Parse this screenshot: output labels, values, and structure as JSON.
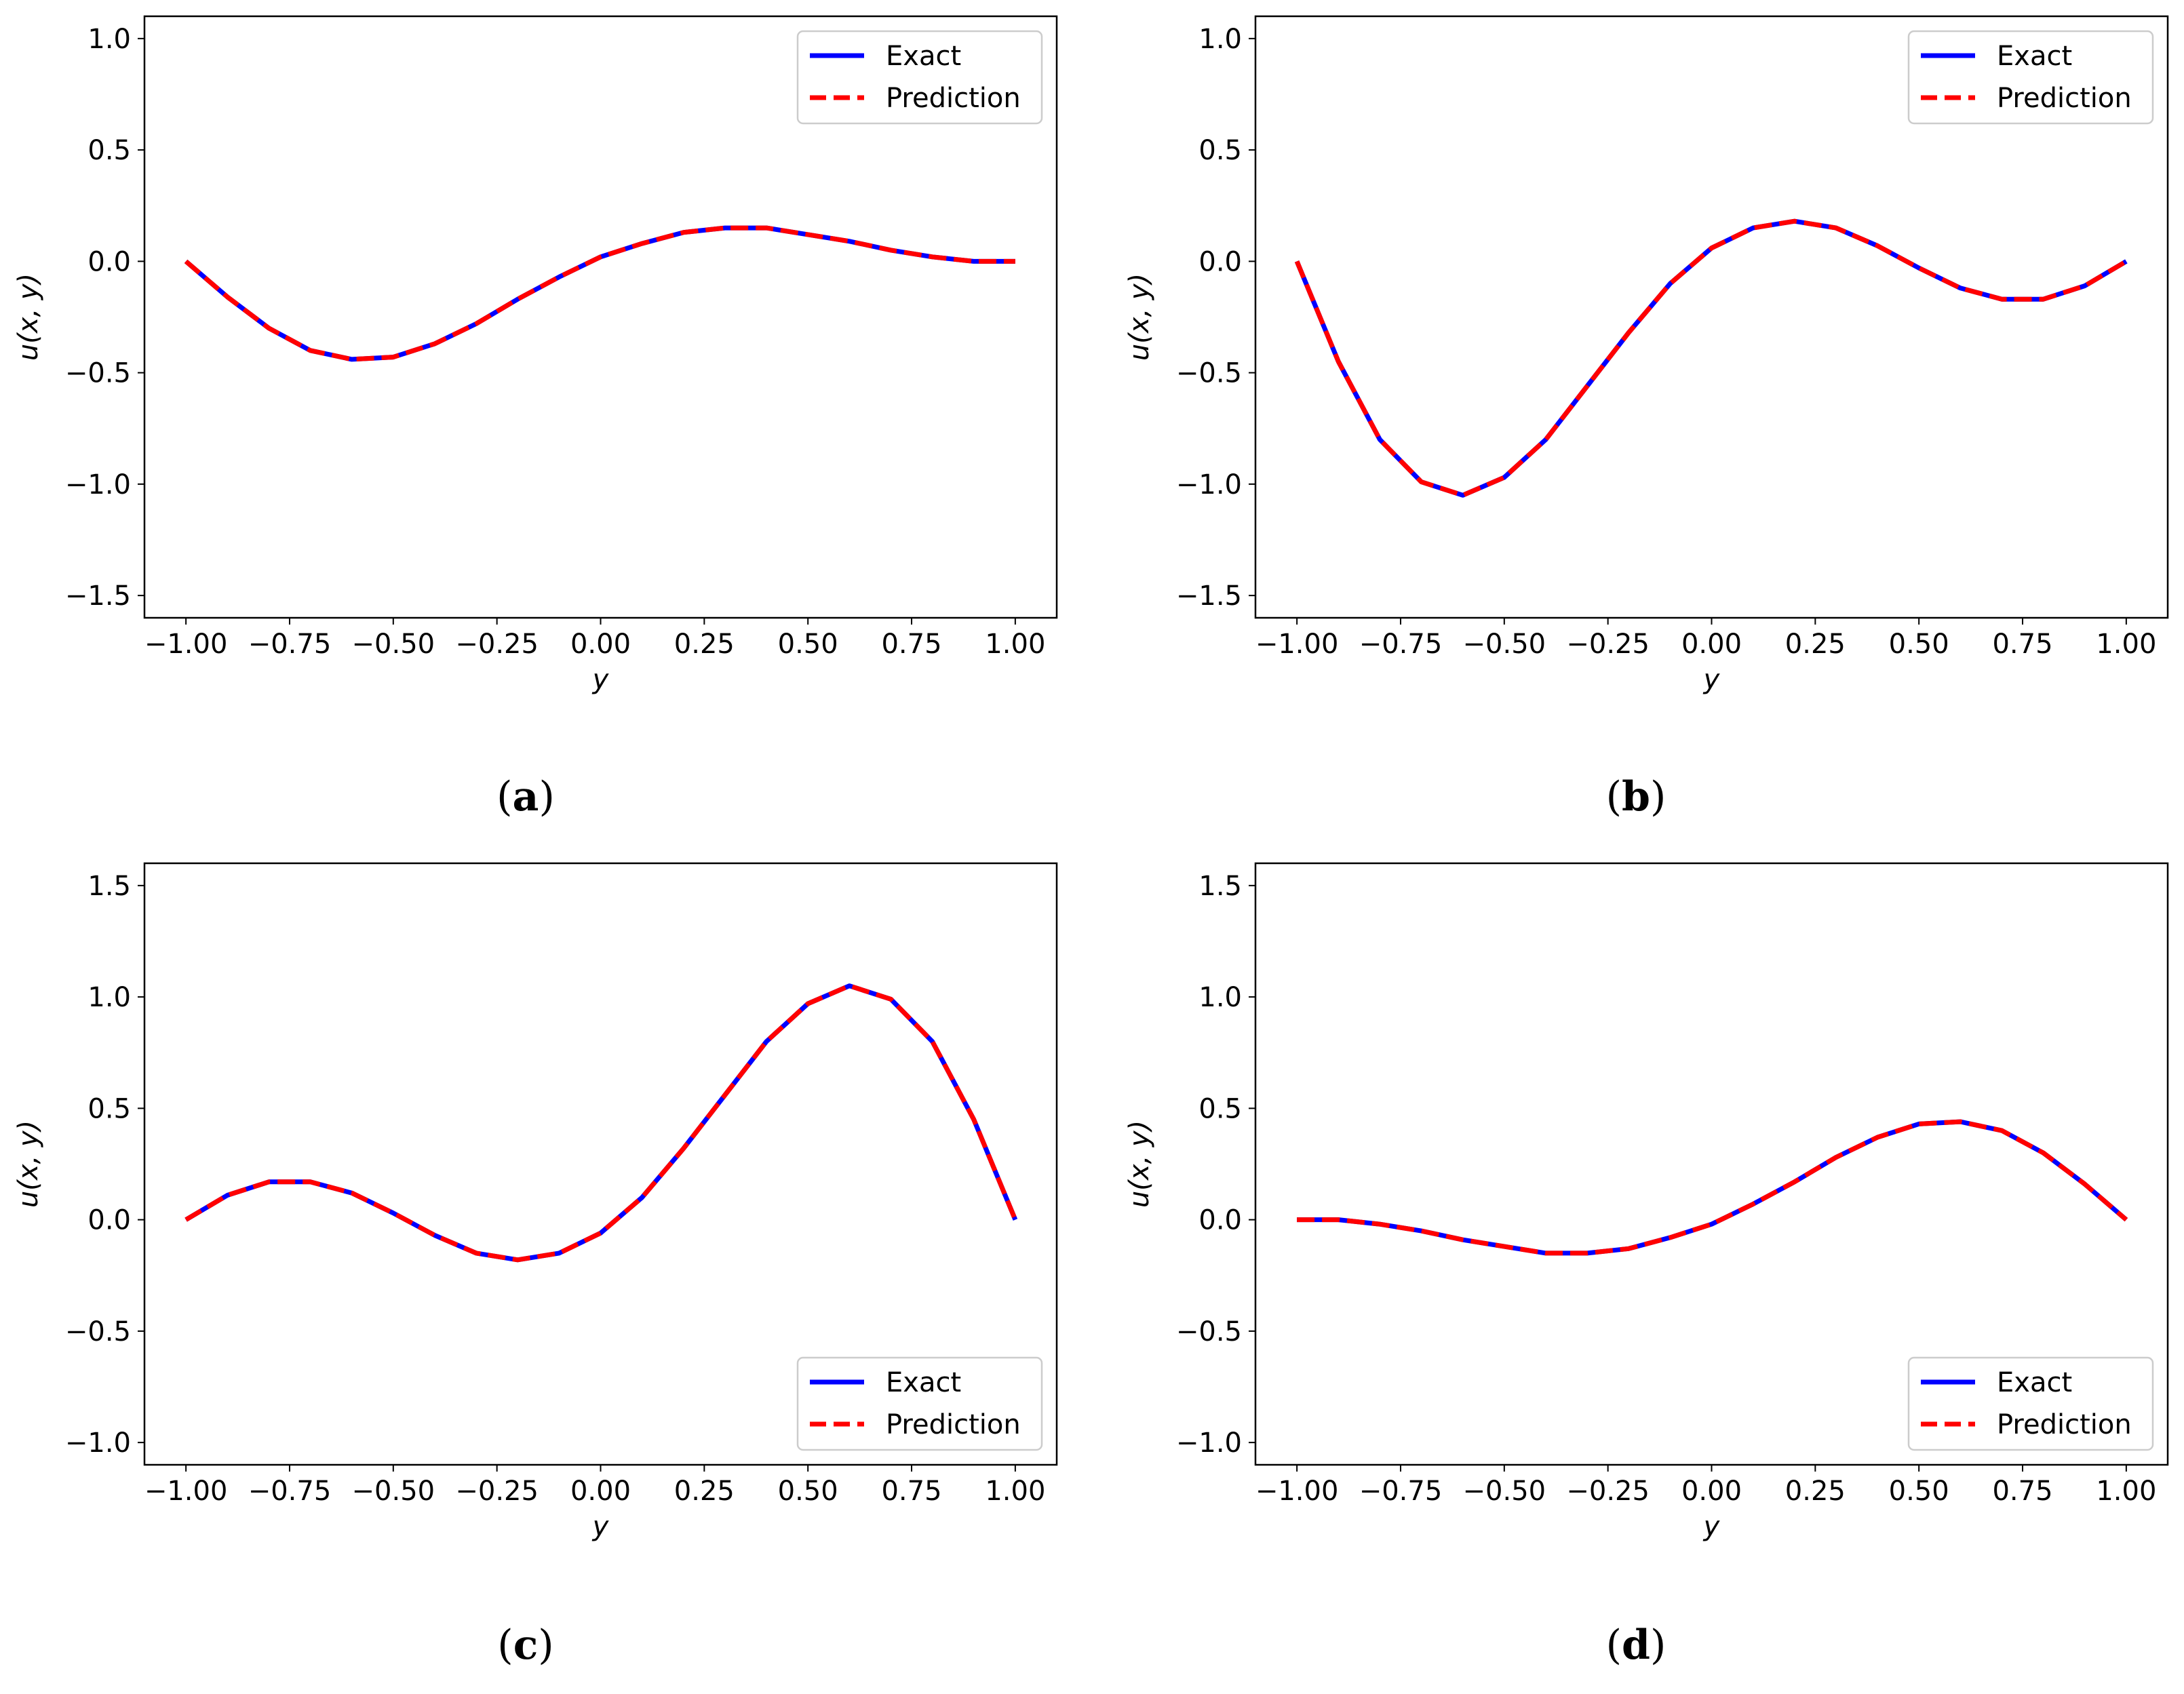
{
  "chart_data": [
    {
      "type": "line",
      "panel": "a",
      "caption_letter": "a",
      "xlabel": "y",
      "ylabel": "u(x, y)",
      "xlim": [
        -1.1,
        1.1
      ],
      "ylim": [
        -1.6,
        1.1
      ],
      "xticks": [
        -1.0,
        -0.75,
        -0.5,
        -0.25,
        0.0,
        0.25,
        0.5,
        0.75,
        1.0
      ],
      "xtick_labels": [
        "−1.00",
        "−0.75",
        "−0.50",
        "−0.25",
        "0.00",
        "0.25",
        "0.50",
        "0.75",
        "1.00"
      ],
      "yticks": [
        -1.5,
        -1.0,
        -0.5,
        0.0,
        0.5,
        1.0
      ],
      "ytick_labels": [
        "−1.5",
        "−1.0",
        "−0.5",
        "0.0",
        "0.5",
        "1.0"
      ],
      "legend_position": "top-right",
      "x": [
        -1.0,
        -0.9,
        -0.8,
        -0.7,
        -0.6,
        -0.5,
        -0.4,
        -0.3,
        -0.2,
        -0.1,
        0.0,
        0.1,
        0.2,
        0.3,
        0.4,
        0.5,
        0.6,
        0.7,
        0.8,
        0.9,
        1.0
      ],
      "series": [
        {
          "name": "Exact",
          "color": "#0000ff",
          "style": "solid",
          "values": [
            0.0,
            -0.16,
            -0.3,
            -0.4,
            -0.44,
            -0.43,
            -0.37,
            -0.28,
            -0.17,
            -0.07,
            0.02,
            0.08,
            0.13,
            0.15,
            0.15,
            0.12,
            0.09,
            0.05,
            0.02,
            0.0,
            0.0
          ]
        },
        {
          "name": "Prediction",
          "color": "#ff0000",
          "style": "dashed",
          "values": [
            0.0,
            -0.16,
            -0.3,
            -0.4,
            -0.44,
            -0.43,
            -0.37,
            -0.28,
            -0.17,
            -0.07,
            0.02,
            0.08,
            0.13,
            0.15,
            0.15,
            0.12,
            0.09,
            0.05,
            0.02,
            0.0,
            0.0
          ]
        }
      ]
    },
    {
      "type": "line",
      "panel": "b",
      "caption_letter": "b",
      "xlabel": "y",
      "ylabel": "u(x, y)",
      "xlim": [
        -1.1,
        1.1
      ],
      "ylim": [
        -1.6,
        1.1
      ],
      "xticks": [
        -1.0,
        -0.75,
        -0.5,
        -0.25,
        0.0,
        0.25,
        0.5,
        0.75,
        1.0
      ],
      "xtick_labels": [
        "−1.00",
        "−0.75",
        "−0.50",
        "−0.25",
        "0.00",
        "0.25",
        "0.50",
        "0.75",
        "1.00"
      ],
      "yticks": [
        -1.5,
        -1.0,
        -0.5,
        0.0,
        0.5,
        1.0
      ],
      "ytick_labels": [
        "−1.5",
        "−1.0",
        "−0.5",
        "0.0",
        "0.5",
        "1.0"
      ],
      "legend_position": "top-right",
      "x": [
        -1.0,
        -0.9,
        -0.8,
        -0.7,
        -0.6,
        -0.5,
        -0.4,
        -0.3,
        -0.2,
        -0.1,
        0.0,
        0.1,
        0.2,
        0.3,
        0.4,
        0.5,
        0.6,
        0.7,
        0.8,
        0.9,
        1.0
      ],
      "series": [
        {
          "name": "Exact",
          "color": "#0000ff",
          "style": "solid",
          "values": [
            0.0,
            -0.45,
            -0.8,
            -0.99,
            -1.05,
            -0.97,
            -0.8,
            -0.56,
            -0.32,
            -0.1,
            0.06,
            0.15,
            0.18,
            0.15,
            0.07,
            -0.03,
            -0.12,
            -0.17,
            -0.17,
            -0.11,
            0.0
          ]
        },
        {
          "name": "Prediction",
          "color": "#ff0000",
          "style": "dashed",
          "values": [
            0.0,
            -0.45,
            -0.8,
            -0.99,
            -1.05,
            -0.97,
            -0.8,
            -0.56,
            -0.32,
            -0.1,
            0.06,
            0.15,
            0.18,
            0.15,
            0.07,
            -0.03,
            -0.12,
            -0.17,
            -0.17,
            -0.11,
            0.0
          ]
        }
      ]
    },
    {
      "type": "line",
      "panel": "c",
      "caption_letter": "c",
      "xlabel": "y",
      "ylabel": "u(x, y)",
      "xlim": [
        -1.1,
        1.1
      ],
      "ylim": [
        -1.1,
        1.6
      ],
      "xticks": [
        -1.0,
        -0.75,
        -0.5,
        -0.25,
        0.0,
        0.25,
        0.5,
        0.75,
        1.0
      ],
      "xtick_labels": [
        "−1.00",
        "−0.75",
        "−0.50",
        "−0.25",
        "0.00",
        "0.25",
        "0.50",
        "0.75",
        "1.00"
      ],
      "yticks": [
        -1.0,
        -0.5,
        0.0,
        0.5,
        1.0,
        1.5
      ],
      "ytick_labels": [
        "−1.0",
        "−0.5",
        "0.0",
        "0.5",
        "1.0",
        "1.5"
      ],
      "legend_position": "bottom-right",
      "x": [
        -1.0,
        -0.9,
        -0.8,
        -0.7,
        -0.6,
        -0.5,
        -0.4,
        -0.3,
        -0.2,
        -0.1,
        0.0,
        0.1,
        0.2,
        0.3,
        0.4,
        0.5,
        0.6,
        0.7,
        0.8,
        0.9,
        1.0
      ],
      "series": [
        {
          "name": "Exact",
          "color": "#0000ff",
          "style": "solid",
          "values": [
            0.0,
            0.11,
            0.17,
            0.17,
            0.12,
            0.03,
            -0.07,
            -0.15,
            -0.18,
            -0.15,
            -0.06,
            0.1,
            0.32,
            0.56,
            0.8,
            0.97,
            1.05,
            0.99,
            0.8,
            0.45,
            0.0
          ]
        },
        {
          "name": "Prediction",
          "color": "#ff0000",
          "style": "dashed",
          "values": [
            0.0,
            0.11,
            0.17,
            0.17,
            0.12,
            0.03,
            -0.07,
            -0.15,
            -0.18,
            -0.15,
            -0.06,
            0.1,
            0.32,
            0.56,
            0.8,
            0.97,
            1.05,
            0.99,
            0.8,
            0.45,
            0.0
          ]
        }
      ]
    },
    {
      "type": "line",
      "panel": "d",
      "caption_letter": "d",
      "xlabel": "y",
      "ylabel": "u(x, y)",
      "xlim": [
        -1.1,
        1.1
      ],
      "ylim": [
        -1.1,
        1.6
      ],
      "xticks": [
        -1.0,
        -0.75,
        -0.5,
        -0.25,
        0.0,
        0.25,
        0.5,
        0.75,
        1.0
      ],
      "xtick_labels": [
        "−1.00",
        "−0.75",
        "−0.50",
        "−0.25",
        "0.00",
        "0.25",
        "0.50",
        "0.75",
        "1.00"
      ],
      "yticks": [
        -1.0,
        -0.5,
        0.0,
        0.5,
        1.0,
        1.5
      ],
      "ytick_labels": [
        "−1.0",
        "−0.5",
        "0.0",
        "0.5",
        "1.0",
        "1.5"
      ],
      "legend_position": "bottom-right",
      "x": [
        -1.0,
        -0.9,
        -0.8,
        -0.7,
        -0.6,
        -0.5,
        -0.4,
        -0.3,
        -0.2,
        -0.1,
        0.0,
        0.1,
        0.2,
        0.3,
        0.4,
        0.5,
        0.6,
        0.7,
        0.8,
        0.9,
        1.0
      ],
      "series": [
        {
          "name": "Exact",
          "color": "#0000ff",
          "style": "solid",
          "values": [
            0.0,
            0.0,
            -0.02,
            -0.05,
            -0.09,
            -0.12,
            -0.15,
            -0.15,
            -0.13,
            -0.08,
            -0.02,
            0.07,
            0.17,
            0.28,
            0.37,
            0.43,
            0.44,
            0.4,
            0.3,
            0.16,
            0.0
          ]
        },
        {
          "name": "Prediction",
          "color": "#ff0000",
          "style": "dashed",
          "values": [
            0.0,
            0.0,
            -0.02,
            -0.05,
            -0.09,
            -0.12,
            -0.15,
            -0.15,
            -0.13,
            -0.08,
            -0.02,
            0.07,
            0.17,
            0.28,
            0.37,
            0.43,
            0.44,
            0.4,
            0.3,
            0.16,
            0.0
          ]
        }
      ]
    }
  ]
}
